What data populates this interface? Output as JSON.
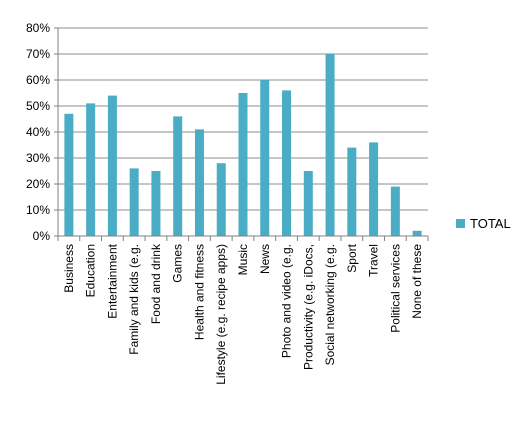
{
  "chart_data": {
    "type": "bar",
    "categories": [
      "Business",
      "Education",
      "Entertainment",
      "Family and kids (e.g.",
      "Food and drink",
      "Games",
      "Health and fitness",
      "Lifestyle (e.g. recipe apps)",
      "Music",
      "News",
      "Photo and video (e.g.",
      "Productivity (e.g. iDocs,",
      "Social networking (e.g.",
      "Sport",
      "Travel",
      "Political services",
      "None of these"
    ],
    "series": [
      {
        "name": "TOTAL",
        "values": [
          47,
          51,
          54,
          26,
          25,
          46,
          41,
          28,
          55,
          60,
          56,
          25,
          70,
          34,
          36,
          19,
          2
        ]
      }
    ],
    "y_tick_labels": [
      "0%",
      "10%",
      "20%",
      "30%",
      "40%",
      "50%",
      "60%",
      "70%",
      "80%"
    ],
    "ylim": [
      0,
      80
    ],
    "grid": true,
    "legend_position": "right",
    "colors": {
      "bar": "#4bacc6",
      "grid": "#8c8c8c",
      "axis": "#808080"
    }
  }
}
